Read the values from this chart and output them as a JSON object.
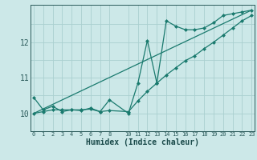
{
  "xlabel": "Humidex (Indice chaleur)",
  "bg_color": "#cce8e8",
  "line_color": "#1a7a6e",
  "grid_color": "#aacfcf",
  "series1_x": [
    0,
    1,
    2,
    3,
    4,
    5,
    6,
    7,
    8,
    10,
    11,
    12,
    13,
    14,
    15,
    16,
    17,
    18,
    19,
    20,
    21,
    22,
    23
  ],
  "series1_y": [
    10.45,
    10.1,
    10.2,
    10.05,
    10.1,
    10.08,
    10.15,
    10.05,
    10.38,
    10.0,
    10.85,
    12.05,
    10.85,
    12.6,
    12.45,
    12.35,
    12.35,
    12.4,
    12.55,
    12.75,
    12.8,
    12.85,
    12.9
  ],
  "series2_x": [
    0,
    1,
    2,
    3,
    4,
    5,
    6,
    7,
    8,
    10,
    11,
    12,
    13,
    14,
    15,
    16,
    17,
    18,
    19,
    20,
    21,
    22,
    23
  ],
  "series2_y": [
    10.0,
    10.05,
    10.1,
    10.1,
    10.1,
    10.1,
    10.12,
    10.05,
    10.08,
    10.05,
    10.35,
    10.62,
    10.85,
    11.08,
    11.28,
    11.48,
    11.62,
    11.82,
    12.0,
    12.2,
    12.4,
    12.6,
    12.75
  ],
  "series3_x": [
    0,
    23
  ],
  "series3_y": [
    10.0,
    12.9
  ],
  "ylim": [
    9.82,
    13.05
  ],
  "xlim": [
    -0.3,
    23.3
  ],
  "yticks": [
    10,
    11,
    12
  ],
  "xticks": [
    0,
    1,
    2,
    3,
    4,
    5,
    6,
    7,
    8,
    10,
    11,
    12,
    13,
    14,
    15,
    16,
    17,
    18,
    19,
    20,
    21,
    22,
    23
  ]
}
